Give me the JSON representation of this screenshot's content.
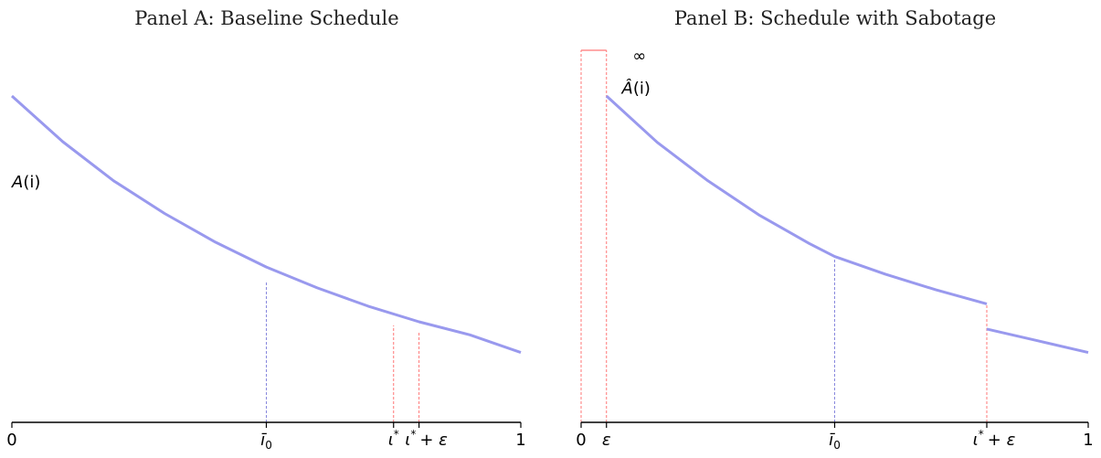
{
  "colors": {
    "curve": "#9999ee",
    "guide_blue": "#8888dd",
    "guide_red": "#ff7777",
    "axis": "#000000"
  },
  "chart_data": [
    {
      "type": "line",
      "title": "Panel A: Baseline Schedule",
      "xlim": [
        0,
        1
      ],
      "ylim": [
        0,
        1.14
      ],
      "curve_label": {
        "base": "A",
        "arg": "(i)",
        "x": 0.0,
        "y": 0.72
      },
      "series": [
        {
          "values": [
            {
              "x": 0.0,
              "y": 1.0
            },
            {
              "x": 0.1,
              "y": 0.86
            },
            {
              "x": 0.2,
              "y": 0.74
            },
            {
              "x": 0.3,
              "y": 0.64
            },
            {
              "x": 0.4,
              "y": 0.552
            },
            {
              "x": 0.5,
              "y": 0.476
            },
            {
              "x": 0.6,
              "y": 0.412
            },
            {
              "x": 0.7,
              "y": 0.356
            },
            {
              "x": 0.8,
              "y": 0.308
            },
            {
              "x": 0.9,
              "y": 0.268
            },
            {
              "x": 1.0,
              "y": 0.214
            }
          ]
        }
      ],
      "guides": [
        {
          "x": 0.5,
          "y": 0.431,
          "color": "blue"
        },
        {
          "x": 0.75,
          "y": 0.297,
          "color": "red"
        },
        {
          "x": 0.8,
          "y": 0.277,
          "color": "red"
        }
      ],
      "ticks": [
        {
          "x": 0.0,
          "label": "0",
          "kind": "plain"
        },
        {
          "x": 0.5,
          "label": "ī",
          "sub": "0",
          "kind": "bar"
        },
        {
          "x": 0.75,
          "label": "ι",
          "sup": "*",
          "kind": "star"
        },
        {
          "x": 0.8,
          "label": "ι",
          "sup": "*",
          "tail": "+ ε",
          "kind": "star"
        },
        {
          "x": 1.0,
          "label": "1",
          "kind": "plain"
        }
      ]
    },
    {
      "type": "line",
      "title": "Panel B: Schedule with Sabotage",
      "xlim": [
        0,
        1
      ],
      "ylim": [
        0,
        1.14
      ],
      "infinity_label": "∞",
      "curve_label": {
        "base": "Â",
        "arg": "(i)",
        "x": 0.1,
        "y": 1.03
      },
      "series": [
        {
          "values": [
            {
              "x": 0.05,
              "y": 1.0
            },
            {
              "x": 0.15,
              "y": 0.858
            },
            {
              "x": 0.25,
              "y": 0.74
            },
            {
              "x": 0.35,
              "y": 0.636
            },
            {
              "x": 0.45,
              "y": 0.548
            },
            {
              "x": 0.5,
              "y": 0.508
            },
            {
              "x": 0.6,
              "y": 0.454
            },
            {
              "x": 0.7,
              "y": 0.406
            },
            {
              "x": 0.8,
              "y": 0.363
            }
          ]
        },
        {
          "values": [
            {
              "x": 0.8,
              "y": 0.286
            },
            {
              "x": 0.9,
              "y": 0.25
            },
            {
              "x": 1.0,
              "y": 0.214
            }
          ]
        }
      ],
      "sabotage_box": {
        "x0": 0.0,
        "x1": 0.05
      },
      "guides": [
        {
          "x": 0.5,
          "y": 0.508,
          "color": "blue"
        },
        {
          "x": 0.8,
          "y": 0.363,
          "color": "red"
        }
      ],
      "ticks": [
        {
          "x": 0.0,
          "label": "0",
          "kind": "plain"
        },
        {
          "x": 0.05,
          "label": "ε",
          "kind": "italic"
        },
        {
          "x": 0.5,
          "label": "ī",
          "sub": "0",
          "kind": "bar"
        },
        {
          "x": 0.8,
          "label": "ι",
          "sup": "*",
          "tail": "+ ε",
          "kind": "star"
        },
        {
          "x": 1.0,
          "label": "1",
          "kind": "plain"
        }
      ]
    }
  ]
}
